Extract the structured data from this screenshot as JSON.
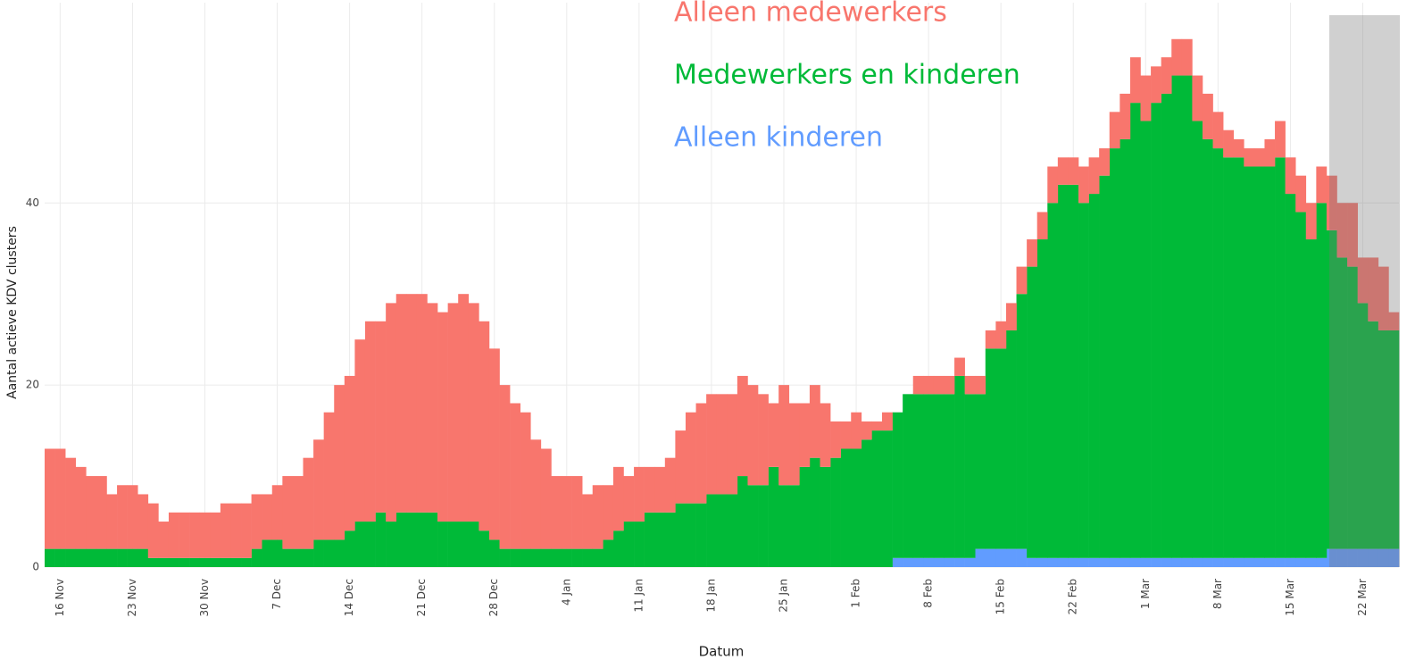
{
  "chart_data": {
    "type": "stacked_bar",
    "y_label": "Aantal actieve KDV clusters",
    "x_label": "Datum",
    "categories": [
      null,
      "16 Nov",
      null,
      null,
      null,
      null,
      null,
      null,
      "23 Nov",
      null,
      null,
      null,
      null,
      null,
      null,
      "30 Nov",
      null,
      null,
      null,
      null,
      null,
      null,
      "7 Dec",
      null,
      null,
      null,
      null,
      null,
      null,
      "14 Dec",
      null,
      null,
      null,
      null,
      null,
      null,
      "21 Dec",
      null,
      null,
      null,
      null,
      null,
      null,
      "28 Dec",
      null,
      null,
      null,
      null,
      null,
      null,
      "4 Jan",
      null,
      null,
      null,
      null,
      null,
      null,
      "11 Jan",
      null,
      null,
      null,
      null,
      null,
      null,
      "18 Jan",
      null,
      null,
      null,
      null,
      null,
      null,
      "25 Jan",
      null,
      null,
      null,
      null,
      null,
      null,
      "1 Feb",
      null,
      null,
      null,
      null,
      null,
      null,
      "8 Feb",
      null,
      null,
      null,
      null,
      null,
      null,
      "15 Feb",
      null,
      null,
      null,
      null,
      null,
      null,
      "22 Feb",
      null,
      null,
      null,
      null,
      null,
      null,
      "1 Mar",
      null,
      null,
      null,
      null,
      null,
      null,
      "8 Mar",
      null,
      null,
      null,
      null,
      null,
      null,
      "15 Mar",
      null,
      null,
      null,
      null,
      null,
      null,
      "22 Mar",
      null,
      null,
      null
    ],
    "series": [
      {
        "name": "Alleen medewerkers",
        "color": "#f8766d",
        "values": [
          11,
          11,
          10,
          9,
          8,
          8,
          6,
          7,
          7,
          6,
          6,
          4,
          5,
          5,
          5,
          5,
          5,
          6,
          6,
          6,
          6,
          5,
          6,
          8,
          8,
          10,
          11,
          14,
          17,
          17,
          20,
          22,
          21,
          24,
          24,
          24,
          24,
          23,
          23,
          24,
          25,
          24,
          23,
          21,
          18,
          16,
          15,
          12,
          11,
          8,
          8,
          8,
          6,
          7,
          6,
          7,
          5,
          6,
          5,
          5,
          6,
          8,
          10,
          11,
          11,
          11,
          11,
          11,
          11,
          10,
          7,
          11,
          9,
          7,
          8,
          7,
          4,
          3,
          4,
          2,
          1,
          2,
          0,
          0,
          2,
          2,
          2,
          2,
          2,
          2,
          2,
          2,
          3,
          3,
          3,
          3,
          3,
          4,
          3,
          3,
          4,
          4,
          3,
          4,
          5,
          5,
          5,
          4,
          4,
          4,
          4,
          5,
          5,
          4,
          3,
          2,
          2,
          2,
          3,
          4,
          4,
          4,
          4,
          4,
          6,
          6,
          7,
          5,
          7,
          7,
          2
        ]
      },
      {
        "name": "Medewerkers en kinderen",
        "color": "#00ba38",
        "values": [
          2,
          2,
          2,
          2,
          2,
          2,
          2,
          2,
          2,
          2,
          1,
          1,
          1,
          1,
          1,
          1,
          1,
          1,
          1,
          1,
          2,
          3,
          3,
          2,
          2,
          2,
          3,
          3,
          3,
          4,
          5,
          5,
          6,
          5,
          6,
          6,
          6,
          6,
          5,
          5,
          5,
          5,
          4,
          3,
          2,
          2,
          2,
          2,
          2,
          2,
          2,
          2,
          2,
          2,
          3,
          4,
          5,
          5,
          6,
          6,
          6,
          7,
          7,
          7,
          8,
          8,
          8,
          10,
          9,
          9,
          11,
          9,
          9,
          11,
          12,
          11,
          12,
          13,
          13,
          14,
          15,
          15,
          16,
          18,
          18,
          18,
          18,
          18,
          20,
          18,
          17,
          22,
          22,
          24,
          28,
          32,
          35,
          39,
          41,
          41,
          39,
          40,
          42,
          45,
          46,
          50,
          48,
          50,
          51,
          53,
          53,
          48,
          46,
          45,
          44,
          44,
          43,
          43,
          43,
          44,
          40,
          38,
          35,
          39,
          35,
          32,
          31,
          27,
          25,
          24,
          24
        ]
      },
      {
        "name": "Alleen kinderen",
        "color": "#619cff",
        "values": [
          0,
          0,
          0,
          0,
          0,
          0,
          0,
          0,
          0,
          0,
          0,
          0,
          0,
          0,
          0,
          0,
          0,
          0,
          0,
          0,
          0,
          0,
          0,
          0,
          0,
          0,
          0,
          0,
          0,
          0,
          0,
          0,
          0,
          0,
          0,
          0,
          0,
          0,
          0,
          0,
          0,
          0,
          0,
          0,
          0,
          0,
          0,
          0,
          0,
          0,
          0,
          0,
          0,
          0,
          0,
          0,
          0,
          0,
          0,
          0,
          0,
          0,
          0,
          0,
          0,
          0,
          0,
          0,
          0,
          0,
          0,
          0,
          0,
          0,
          0,
          0,
          0,
          0,
          0,
          0,
          0,
          0,
          1,
          1,
          1,
          1,
          1,
          1,
          1,
          1,
          2,
          2,
          2,
          2,
          2,
          1,
          1,
          1,
          1,
          1,
          1,
          1,
          1,
          1,
          1,
          1,
          1,
          1,
          1,
          1,
          1,
          1,
          1,
          1,
          1,
          1,
          1,
          1,
          1,
          1,
          1,
          1,
          1,
          1,
          2,
          2,
          2,
          2,
          2,
          2,
          2
        ]
      }
    ],
    "ylim": [
      0,
      62
    ],
    "yticks": [
      0,
      20,
      40
    ],
    "grid": true
  }
}
